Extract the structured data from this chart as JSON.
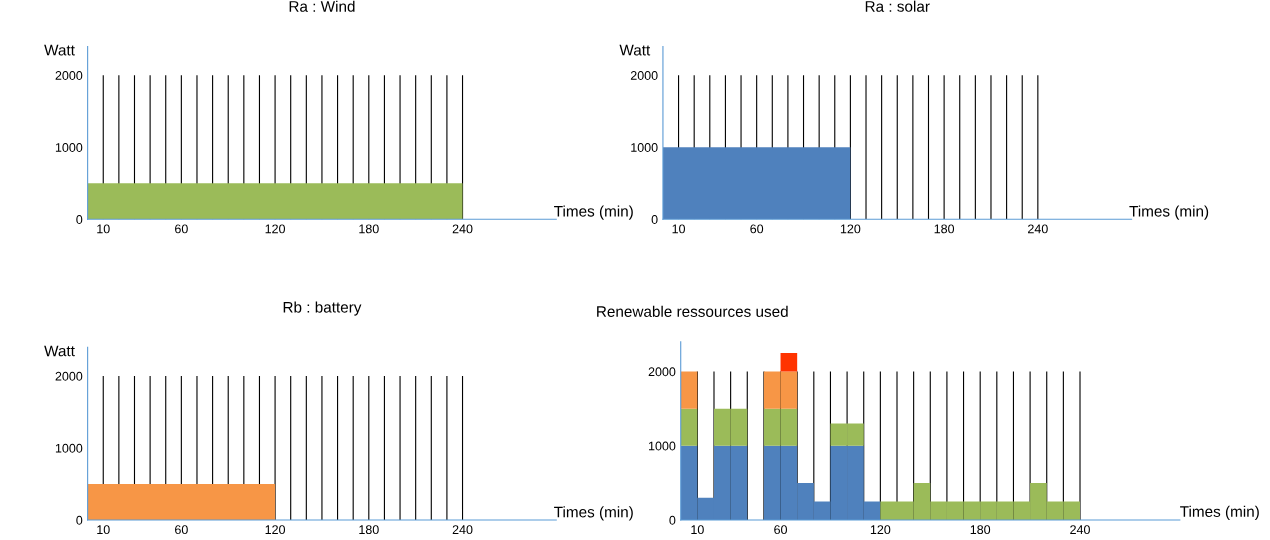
{
  "chart_data": [
    {
      "type": "area",
      "title": "Ra : Wind",
      "ylabel": "Watt",
      "xlabel": "Times (min)",
      "grid": "x",
      "x": [
        0,
        240
      ],
      "series": [
        {
          "color": "#9bbb59",
          "values": [
            500,
            500
          ]
        }
      ],
      "xlim": [
        0,
        300
      ],
      "ylim": [
        0,
        2400
      ],
      "yticks": [
        0,
        1000,
        2000
      ],
      "xticks": [
        10,
        {
          "value": 20,
          "label": null
        },
        {
          "value": 30,
          "label": null
        },
        {
          "value": 40,
          "label": null
        },
        {
          "value": 50,
          "label": null
        },
        60,
        {
          "value": 70,
          "label": null
        },
        {
          "value": 80,
          "label": null
        },
        {
          "value": 90,
          "label": null
        },
        {
          "value": 100,
          "label": null
        },
        {
          "value": 110,
          "label": null
        },
        120,
        {
          "value": 130,
          "label": null
        },
        {
          "value": 140,
          "label": null
        },
        {
          "value": 150,
          "label": null
        },
        {
          "value": 160,
          "label": null
        },
        {
          "value": 170,
          "label": null
        },
        180,
        {
          "value": 190,
          "label": null
        },
        {
          "value": 200,
          "label": null
        },
        {
          "value": 210,
          "label": null
        },
        {
          "value": 220,
          "label": null
        },
        {
          "value": 230,
          "label": null
        },
        240
      ]
    },
    {
      "type": "area",
      "title": "Ra : solar",
      "ylabel": "Watt",
      "xlabel": "Times (min)",
      "grid": "x",
      "x": [
        0,
        120
      ],
      "series": [
        {
          "color": "#4f81bd",
          "values": [
            1000,
            1000
          ]
        }
      ],
      "xlim": [
        0,
        300
      ],
      "ylim": [
        0,
        2400
      ],
      "yticks": [
        0,
        1000,
        2000
      ],
      "xticks": [
        10,
        {
          "value": 20,
          "label": null
        },
        {
          "value": 30,
          "label": null
        },
        {
          "value": 40,
          "label": null
        },
        {
          "value": 50,
          "label": null
        },
        60,
        {
          "value": 70,
          "label": null
        },
        {
          "value": 80,
          "label": null
        },
        {
          "value": 90,
          "label": null
        },
        {
          "value": 100,
          "label": null
        },
        {
          "value": 110,
          "label": null
        },
        120,
        {
          "value": 130,
          "label": null
        },
        {
          "value": 140,
          "label": null
        },
        {
          "value": 150,
          "label": null
        },
        {
          "value": 160,
          "label": null
        },
        {
          "value": 170,
          "label": null
        },
        180,
        {
          "value": 190,
          "label": null
        },
        {
          "value": 200,
          "label": null
        },
        {
          "value": 210,
          "label": null
        },
        {
          "value": 220,
          "label": null
        },
        {
          "value": 230,
          "label": null
        },
        240
      ]
    },
    {
      "type": "area",
      "title": "Rb : battery",
      "ylabel": "Watt",
      "xlabel": "Times (min)",
      "grid": "x",
      "x": [
        0,
        120
      ],
      "series": [
        {
          "color": "#f79646",
          "values": [
            500,
            500
          ]
        }
      ],
      "xlim": [
        0,
        300
      ],
      "ylim": [
        0,
        2400
      ],
      "yticks": [
        0,
        1000,
        2000
      ],
      "xticks": [
        10,
        {
          "value": 20,
          "label": null
        },
        {
          "value": 30,
          "label": null
        },
        {
          "value": 40,
          "label": null
        },
        {
          "value": 50,
          "label": null
        },
        60,
        {
          "value": 70,
          "label": null
        },
        {
          "value": 80,
          "label": null
        },
        {
          "value": 90,
          "label": null
        },
        {
          "value": 100,
          "label": null
        },
        {
          "value": 110,
          "label": null
        },
        120,
        {
          "value": 130,
          "label": null
        },
        {
          "value": 140,
          "label": null
        },
        {
          "value": 150,
          "label": null
        },
        {
          "value": 160,
          "label": null
        },
        {
          "value": 170,
          "label": null
        },
        180,
        {
          "value": 190,
          "label": null
        },
        {
          "value": 200,
          "label": null
        },
        {
          "value": 210,
          "label": null
        },
        {
          "value": 220,
          "label": null
        },
        {
          "value": 230,
          "label": null
        },
        240
      ]
    },
    {
      "type": "bar",
      "title": "Renewable ressources used",
      "xlabel": "Times (min)",
      "grid": "x",
      "stacked": true,
      "x": [
        5,
        15,
        25,
        35,
        45,
        55,
        65,
        75,
        85,
        95,
        105,
        115,
        125,
        135,
        145,
        155,
        165,
        175,
        185,
        195,
        205,
        215,
        225,
        235
      ],
      "series": [
        {
          "color": "#4f81bd",
          "values": [
            1000,
            300,
            1000,
            1000,
            null,
            1000,
            1000,
            500,
            250,
            1000,
            1000,
            250,
            null,
            null,
            null,
            null,
            null,
            null,
            null,
            null,
            null,
            null,
            null,
            null
          ]
        },
        {
          "color": "#9bbb59",
          "values": [
            500,
            null,
            500,
            500,
            null,
            500,
            500,
            null,
            null,
            300,
            300,
            null,
            250,
            250,
            500,
            250,
            250,
            250,
            250,
            250,
            250,
            500,
            250,
            250
          ]
        },
        {
          "color": "#f79646",
          "values": [
            500,
            null,
            null,
            null,
            null,
            500,
            500,
            null,
            null,
            null,
            null,
            null,
            null,
            null,
            null,
            null,
            null,
            null,
            null,
            null,
            null,
            null,
            null,
            null
          ]
        },
        {
          "color": "#ff3300",
          "values": [
            null,
            null,
            null,
            null,
            null,
            null,
            250,
            null,
            null,
            null,
            null,
            null,
            null,
            null,
            null,
            null,
            null,
            null,
            null,
            null,
            null,
            null,
            null,
            null
          ]
        }
      ],
      "xlim": [
        0,
        300
      ],
      "ylim": [
        0,
        2400
      ],
      "yticks": [
        0,
        1000,
        2000
      ],
      "xticks": [
        10,
        {
          "value": 20,
          "label": null
        },
        {
          "value": 30,
          "label": null
        },
        {
          "value": 40,
          "label": null
        },
        {
          "value": 50,
          "label": null
        },
        60,
        {
          "value": 70,
          "label": null
        },
        {
          "value": 80,
          "label": null
        },
        {
          "value": 90,
          "label": null
        },
        {
          "value": 100,
          "label": null
        },
        {
          "value": 110,
          "label": null
        },
        120,
        {
          "value": 130,
          "label": null
        },
        {
          "value": 140,
          "label": null
        },
        {
          "value": 150,
          "label": null
        },
        {
          "value": 160,
          "label": null
        },
        {
          "value": 170,
          "label": null
        },
        180,
        {
          "value": 190,
          "label": null
        },
        {
          "value": 200,
          "label": null
        },
        {
          "value": 210,
          "label": null
        },
        {
          "value": 220,
          "label": null
        },
        {
          "value": 230,
          "label": null
        },
        240
      ]
    }
  ]
}
